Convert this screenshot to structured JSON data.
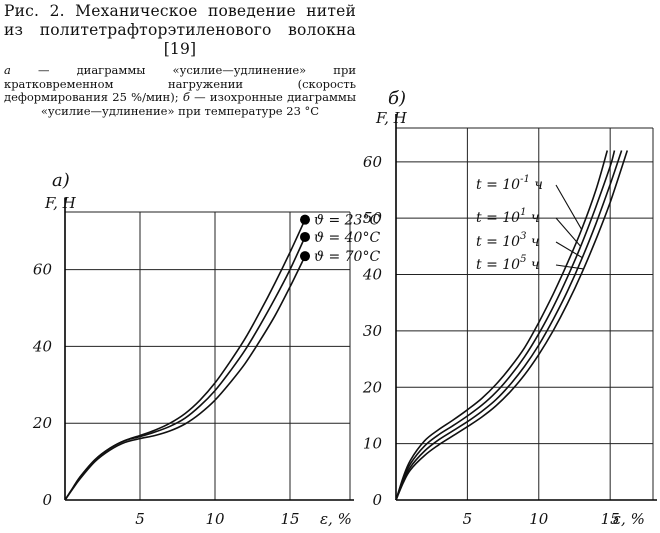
{
  "caption": {
    "title": "Рис. 2. Механическое поведение нитей из политетрафторэтиленового волокна [19]",
    "notes_a_letter": "а",
    "notes_a": " — диаграммы «усилие—удлинение» при кратковременном нагружении (скорость деформирования 25 %/мин); ",
    "notes_b_letter": "б",
    "notes_b": " — изохронные диаграммы «усилие—удлинение» при температуре 23 °С"
  },
  "chart_data": [
    {
      "type": "line",
      "panel_label": "а)",
      "xlabel": "ε, %",
      "ylabel": "F, Н",
      "xlim": [
        0,
        19
      ],
      "ylim": [
        0,
        75
      ],
      "xticks": [
        5,
        10,
        15
      ],
      "yticks": [
        0,
        20,
        40,
        60
      ],
      "grid": true,
      "series": [
        {
          "name": "ϑ = 23°C",
          "x": [
            0,
            0.5,
            1,
            2,
            3,
            4,
            5,
            6,
            7,
            8,
            9,
            10,
            11,
            12,
            13,
            14,
            15,
            16
          ],
          "y": [
            0,
            3,
            6,
            10.5,
            13.5,
            15.5,
            16.8,
            18.2,
            20,
            22.5,
            26,
            30.5,
            36,
            42,
            49,
            56.5,
            64.5,
            73
          ]
        },
        {
          "name": "ϑ = 40°C",
          "x": [
            0,
            0.5,
            1,
            2,
            3,
            4,
            5,
            6,
            7,
            8,
            9,
            10,
            11,
            12,
            13,
            14,
            15,
            16
          ],
          "y": [
            0,
            3,
            6,
            10.5,
            13.5,
            15.5,
            16.5,
            17.7,
            19.2,
            21.3,
            24.5,
            28.5,
            33.5,
            39,
            45.5,
            52.5,
            60,
            68.5
          ]
        },
        {
          "name": "ϑ = 70°C",
          "x": [
            0,
            0.5,
            1,
            2,
            3,
            4,
            5,
            6,
            7,
            8,
            9,
            10,
            11,
            12,
            13,
            14,
            15,
            16
          ],
          "y": [
            0,
            2.8,
            5.5,
            10,
            13,
            15,
            16,
            16.8,
            18,
            19.8,
            22.5,
            26,
            30.5,
            35.5,
            41.5,
            48,
            55.5,
            63.5
          ]
        }
      ]
    },
    {
      "type": "line",
      "panel_label": "б)",
      "xlabel": "ε, %",
      "ylabel": "F, Н",
      "xlim": [
        0,
        18
      ],
      "ylim": [
        0,
        66
      ],
      "xticks": [
        5,
        10,
        15
      ],
      "yticks": [
        0,
        10,
        20,
        30,
        40,
        50,
        60
      ],
      "grid": true,
      "series": [
        {
          "name": "t = 10⁻¹ ч",
          "x": [
            0,
            0.5,
            1,
            2,
            3,
            4,
            5,
            6,
            7,
            8,
            9,
            10,
            11,
            12,
            13,
            14,
            14.8
          ],
          "y": [
            0,
            4,
            7,
            10.5,
            12.5,
            14.2,
            16,
            18,
            20.5,
            23.5,
            27,
            31.5,
            36.5,
            42,
            48,
            55,
            62
          ]
        },
        {
          "name": "t = 10¹ ч",
          "x": [
            0,
            0.5,
            1,
            2,
            3,
            4,
            5,
            6,
            7,
            8,
            9,
            10,
            11,
            12,
            13,
            14,
            15,
            15.3
          ],
          "y": [
            0,
            3.7,
            6.4,
            9.6,
            11.6,
            13.2,
            14.9,
            16.8,
            19.1,
            22,
            25.4,
            29.5,
            34.2,
            39.5,
            45.4,
            52,
            59.2,
            62
          ]
        },
        {
          "name": "t = 10³ ч",
          "x": [
            0,
            0.5,
            1,
            2,
            3,
            4,
            5,
            6,
            7,
            8,
            9,
            10,
            11,
            12,
            13,
            14,
            15,
            15.8
          ],
          "y": [
            0,
            3.3,
            5.8,
            8.7,
            10.7,
            12.3,
            13.9,
            15.7,
            17.8,
            20.5,
            23.7,
            27.5,
            32,
            37,
            42.7,
            49,
            56,
            62
          ]
        },
        {
          "name": "t = 10⁵ ч",
          "x": [
            0,
            0.5,
            1,
            2,
            3,
            4,
            5,
            6,
            7,
            8,
            9,
            10,
            11,
            12,
            13,
            14,
            15,
            16.2
          ],
          "y": [
            0,
            3,
            5.3,
            7.9,
            9.8,
            11.4,
            13,
            14.7,
            16.7,
            19.2,
            22.2,
            25.8,
            30,
            34.8,
            40.2,
            46.2,
            52.8,
            62
          ]
        }
      ]
    }
  ]
}
